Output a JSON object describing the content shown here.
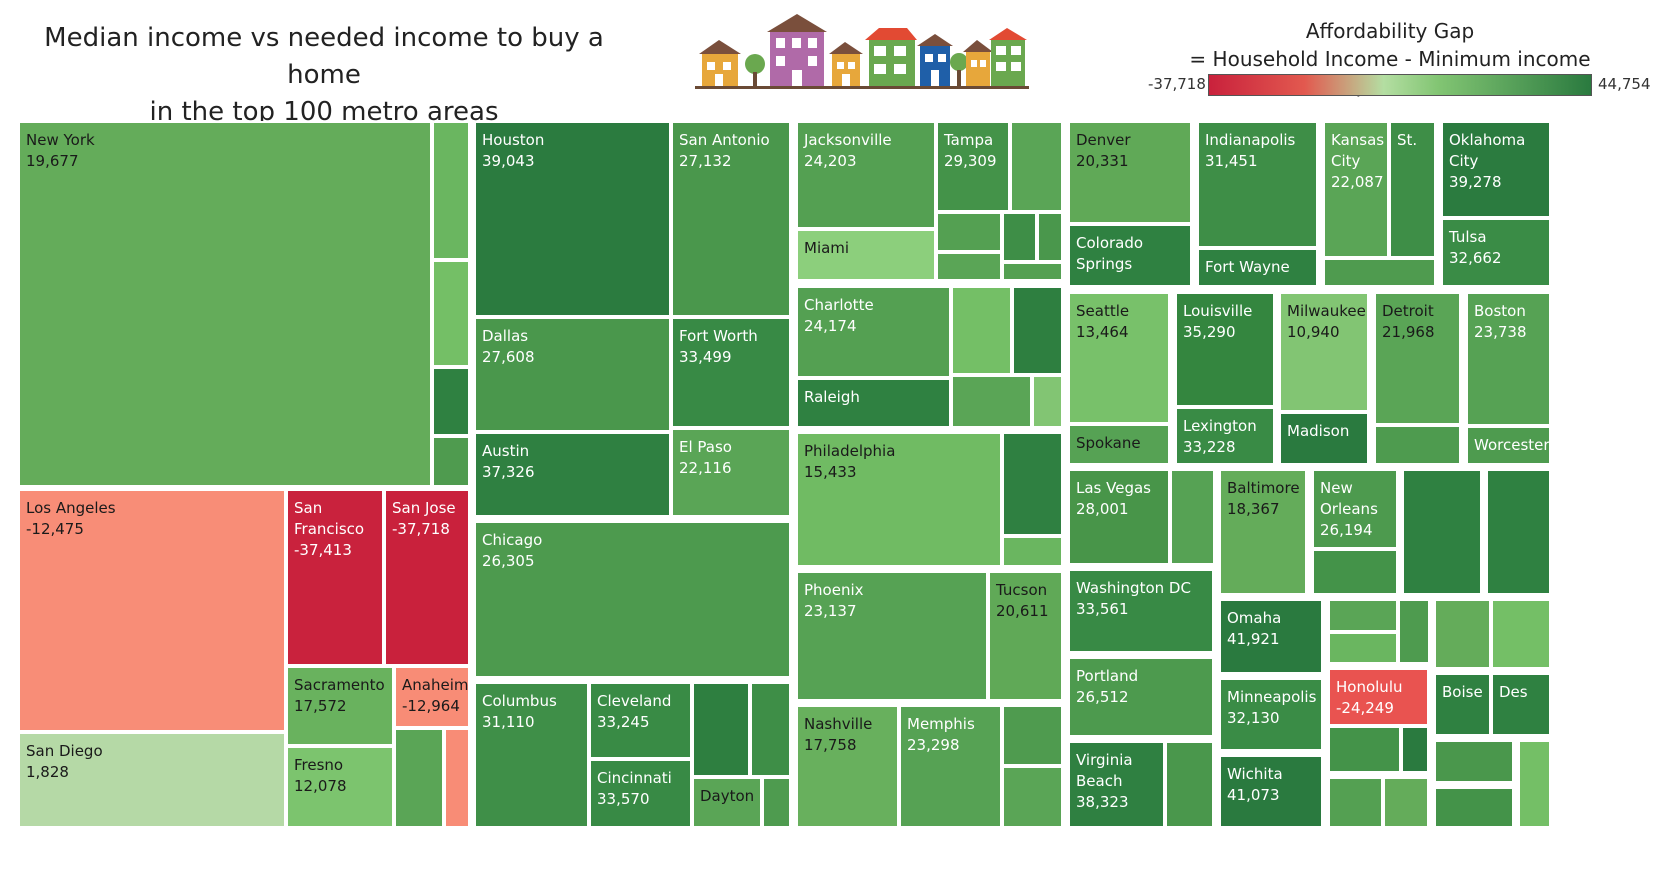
{
  "title_line1": "Median income vs needed income to buy a home",
  "title_line2": "in the top 100 metro areas",
  "legend": {
    "title_line1": "Affordability Gap",
    "title_line2": "= Household Income - Minimum income requirement",
    "min_label": "-37,718",
    "max_label": "44,754",
    "min": -37718,
    "max": 44754,
    "colors": {
      "low": "#c9213c",
      "mid_red": "#e2594f",
      "neutral": "#b4dea2",
      "mid_green": "#82c573",
      "high": "#2a7a3f"
    }
  },
  "chart_data": {
    "type": "treemap",
    "title": "Median income vs needed income to buy a home in the top 100 metro areas",
    "color_measure": "Affordability Gap = Household Income - Minimum income requirement",
    "color_range": [
      -37718,
      44754
    ],
    "labeled_tiles": [
      {
        "city": "New York",
        "value": 19677
      },
      {
        "city": "Los Angeles",
        "value": -12475
      },
      {
        "city": "San Francisco",
        "value": -37413
      },
      {
        "city": "San Jose",
        "value": -37718
      },
      {
        "city": "San Diego",
        "value": 1828
      },
      {
        "city": "Sacramento",
        "value": 17572
      },
      {
        "city": "Anaheim",
        "value": -12964
      },
      {
        "city": "Fresno",
        "value": 12078
      },
      {
        "city": "Houston",
        "value": 39043
      },
      {
        "city": "San Antonio",
        "value": 27132
      },
      {
        "city": "Dallas",
        "value": 27608
      },
      {
        "city": "Fort Worth",
        "value": 33499
      },
      {
        "city": "Austin",
        "value": 37326
      },
      {
        "city": "El Paso",
        "value": 22116
      },
      {
        "city": "Chicago",
        "value": 26305
      },
      {
        "city": "Columbus",
        "value": 31110
      },
      {
        "city": "Cleveland",
        "value": 33245
      },
      {
        "city": "Cincinnati",
        "value": 33570
      },
      {
        "city": "Dayton",
        "value": null
      },
      {
        "city": "Jacksonville",
        "value": 24203
      },
      {
        "city": "Tampa",
        "value": 29309
      },
      {
        "city": "Miami",
        "value": null
      },
      {
        "city": "Charlotte",
        "value": 24174
      },
      {
        "city": "Raleigh",
        "value": null
      },
      {
        "city": "Philadelphia",
        "value": 15433
      },
      {
        "city": "Phoenix",
        "value": 23137
      },
      {
        "city": "Tucson",
        "value": 20611
      },
      {
        "city": "Nashville",
        "value": 17758
      },
      {
        "city": "Memphis",
        "value": 23298
      },
      {
        "city": "Denver",
        "value": 20331
      },
      {
        "city": "Colorado Springs",
        "value": null
      },
      {
        "city": "Indianapolis",
        "value": 31451
      },
      {
        "city": "Fort Wayne",
        "value": null
      },
      {
        "city": "Kansas City",
        "value": 22087
      },
      {
        "city": "St.",
        "value": null
      },
      {
        "city": "Oklahoma City",
        "value": 39278
      },
      {
        "city": "Tulsa",
        "value": 32662
      },
      {
        "city": "Seattle",
        "value": 13464
      },
      {
        "city": "Spokane",
        "value": null
      },
      {
        "city": "Louisville",
        "value": 35290
      },
      {
        "city": "Lexington",
        "value": 33228
      },
      {
        "city": "Milwaukee",
        "value": 10940
      },
      {
        "city": "Madison",
        "value": null
      },
      {
        "city": "Detroit",
        "value": 21968
      },
      {
        "city": "Boston",
        "value": 23738
      },
      {
        "city": "Worcester",
        "value": null
      },
      {
        "city": "Las Vegas",
        "value": 28001
      },
      {
        "city": "Baltimore",
        "value": 18367
      },
      {
        "city": "New Orleans",
        "value": 26194
      },
      {
        "city": "Washington DC",
        "value": 33561
      },
      {
        "city": "Omaha",
        "value": 41921
      },
      {
        "city": "Portland",
        "value": 26512
      },
      {
        "city": "Minneapolis",
        "value": 32130
      },
      {
        "city": "Honolulu",
        "value": -24249
      },
      {
        "city": "Boise",
        "value": null
      },
      {
        "city": "Des",
        "value": null
      },
      {
        "city": "Virginia Beach",
        "value": 38323
      },
      {
        "city": "Wichita",
        "value": 41073
      }
    ]
  },
  "tiles": [
    {
      "city": "New York",
      "value": "19,677",
      "color": "#64ac5a",
      "dark": true
    },
    {
      "city": "",
      "value": "",
      "color": "#6ab660",
      "dark": false
    },
    {
      "city": "",
      "value": "",
      "color": "#74bf66",
      "dark": false
    },
    {
      "city": "",
      "value": "",
      "color": "#2f8141",
      "dark": false
    },
    {
      "city": "",
      "value": "",
      "color": "#4f9b4f",
      "dark": false
    },
    {
      "city": "Los Angeles",
      "value": "-12,475",
      "color": "#f88d77",
      "dark": true
    },
    {
      "city": "San Francisco",
      "value": "-37,413",
      "color": "#c9223d",
      "dark": false
    },
    {
      "city": "San Jose",
      "value": "-37,718",
      "color": "#c9213c",
      "dark": false
    },
    {
      "city": "San Diego",
      "value": "1,828",
      "color": "#b5d9a6",
      "dark": true
    },
    {
      "city": "Sacramento",
      "value": "17,572",
      "color": "#69b25e",
      "dark": true
    },
    {
      "city": "Anaheim",
      "value": "-12,964",
      "color": "#f88c76",
      "dark": true
    },
    {
      "city": "Fresno",
      "value": "12,078",
      "color": "#7cc46e",
      "dark": true
    },
    {
      "city": "",
      "value": "",
      "color": "#5aa556",
      "dark": false
    },
    {
      "city": "",
      "value": "",
      "color": "#f88c76",
      "dark": false
    },
    {
      "city": "Houston",
      "value": "39,043",
      "color": "#2b7b3f",
      "dark": false
    },
    {
      "city": "San Antonio",
      "value": "27,132",
      "color": "#4a974c",
      "dark": false
    },
    {
      "city": "Dallas",
      "value": "27,608",
      "color": "#4a974c",
      "dark": false
    },
    {
      "city": "Fort Worth",
      "value": "33,499",
      "color": "#388a45",
      "dark": false
    },
    {
      "city": "Austin",
      "value": "37,326",
      "color": "#2f8041",
      "dark": false
    },
    {
      "city": "El Paso",
      "value": "22,116",
      "color": "#5aa556",
      "dark": false
    },
    {
      "city": "Chicago",
      "value": "26,305",
      "color": "#4d9a4e",
      "dark": false
    },
    {
      "city": "Columbus",
      "value": "31,110",
      "color": "#3f8f48",
      "dark": false
    },
    {
      "city": "Cleveland",
      "value": "33,245",
      "color": "#398b45",
      "dark": false
    },
    {
      "city": "Cincinnati",
      "value": "33,570",
      "color": "#388a45",
      "dark": false
    },
    {
      "city": "",
      "value": "",
      "color": "#2e7f40",
      "dark": false
    },
    {
      "city": "",
      "value": "",
      "color": "#3e8e47",
      "dark": false
    },
    {
      "city": "Dayton",
      "value": "",
      "color": "#5aa556",
      "dark": true
    },
    {
      "city": "",
      "value": "",
      "color": "#4e9b4f",
      "dark": false
    },
    {
      "city": "Jacksonville",
      "value": "24,203",
      "color": "#54a052",
      "dark": false
    },
    {
      "city": "Tampa",
      "value": "29,309",
      "color": "#449349",
      "dark": false
    },
    {
      "city": "",
      "value": "",
      "color": "#5aa556",
      "dark": false
    },
    {
      "city": "Miami",
      "value": "",
      "color": "#8ccf7c",
      "dark": true
    },
    {
      "city": "",
      "value": "",
      "color": "#54a052",
      "dark": false
    },
    {
      "city": "",
      "value": "",
      "color": "#3e8e47",
      "dark": false
    },
    {
      "city": "",
      "value": "",
      "color": "#4a974c",
      "dark": false
    },
    {
      "city": "",
      "value": "",
      "color": "#5aa556",
      "dark": false
    },
    {
      "city": "",
      "value": "",
      "color": "#54a052",
      "dark": false
    },
    {
      "city": "Charlotte",
      "value": "24,174",
      "color": "#54a052",
      "dark": false
    },
    {
      "city": "",
      "value": "",
      "color": "#74bf66",
      "dark": false
    },
    {
      "city": "",
      "value": "",
      "color": "#2e7f40",
      "dark": false
    },
    {
      "city": "Raleigh",
      "value": "",
      "color": "#2f8141",
      "dark": false
    },
    {
      "city": "",
      "value": "",
      "color": "#5aa556",
      "dark": false
    },
    {
      "city": "",
      "value": "",
      "color": "#82c573",
      "dark": false
    },
    {
      "city": "Philadelphia",
      "value": "15,433",
      "color": "#70bb63",
      "dark": true
    },
    {
      "city": "",
      "value": "",
      "color": "#2f8041",
      "dark": false
    },
    {
      "city": "",
      "value": "",
      "color": "#6ab660",
      "dark": false
    },
    {
      "city": "Phoenix",
      "value": "23,137",
      "color": "#56a254",
      "dark": false
    },
    {
      "city": "Tucson",
      "value": "20,611",
      "color": "#60a957",
      "dark": true
    },
    {
      "city": "Nashville",
      "value": "17,758",
      "color": "#68b05d",
      "dark": true
    },
    {
      "city": "Memphis",
      "value": "23,298",
      "color": "#56a254",
      "dark": false
    },
    {
      "city": "",
      "value": "",
      "color": "#4f9b4f",
      "dark": false
    },
    {
      "city": "",
      "value": "",
      "color": "#5aa556",
      "dark": false
    },
    {
      "city": "Denver",
      "value": "20,331",
      "color": "#60a957",
      "dark": true
    },
    {
      "city": "Colorado Springs",
      "value": "",
      "color": "#2f8141",
      "dark": false
    },
    {
      "city": "Indianapolis",
      "value": "31,451",
      "color": "#3e8e47",
      "dark": false
    },
    {
      "city": "Fort Wayne",
      "value": "",
      "color": "#2f8141",
      "dark": false
    },
    {
      "city": "Kansas City",
      "value": "22,087",
      "color": "#5aa556",
      "dark": false
    },
    {
      "city": "St.",
      "value": "",
      "color": "#3e8e47",
      "dark": false
    },
    {
      "city": "",
      "value": "",
      "color": "#4f9b4f",
      "dark": false
    },
    {
      "city": "Oklahoma City",
      "value": "39,278",
      "color": "#2b7b3f",
      "dark": false
    },
    {
      "city": "Tulsa",
      "value": "32,662",
      "color": "#3a8c46",
      "dark": false
    },
    {
      "city": "Seattle",
      "value": "13,464",
      "color": "#78c16a",
      "dark": true
    },
    {
      "city": "Spokane",
      "value": "",
      "color": "#56a254",
      "dark": true
    },
    {
      "city": "Louisville",
      "value": "35,290",
      "color": "#34863f",
      "dark": false
    },
    {
      "city": "Lexington",
      "value": "33,228",
      "color": "#398b45",
      "dark": false
    },
    {
      "city": "Milwaukee",
      "value": "10,940",
      "color": "#82c573",
      "dark": true
    },
    {
      "city": "Madison",
      "value": "",
      "color": "#2a7a3f",
      "dark": false
    },
    {
      "city": "Detroit",
      "value": "21,968",
      "color": "#5aa556",
      "dark": true
    },
    {
      "city": "",
      "value": "",
      "color": "#4e9b4f",
      "dark": false
    },
    {
      "city": "Boston",
      "value": "23,738",
      "color": "#56a254",
      "dark": false
    },
    {
      "city": "Worcester",
      "value": "",
      "color": "#4e9b4f",
      "dark": false
    },
    {
      "city": "Las Vegas",
      "value": "28,001",
      "color": "#489549",
      "dark": false
    },
    {
      "city": "",
      "value": "",
      "color": "#56a254",
      "dark": false
    },
    {
      "city": "Baltimore",
      "value": "18,367",
      "color": "#64ac5a",
      "dark": true
    },
    {
      "city": "New Orleans",
      "value": "26,194",
      "color": "#4d9a4e",
      "dark": false
    },
    {
      "city": "",
      "value": "",
      "color": "#449349",
      "dark": false
    },
    {
      "city": "",
      "value": "",
      "color": "#2f8141",
      "dark": false
    },
    {
      "city": "",
      "value": "",
      "color": "#2f8141",
      "dark": false
    },
    {
      "city": "Washington DC",
      "value": "33,561",
      "color": "#388a45",
      "dark": false
    },
    {
      "city": "Omaha",
      "value": "41,921",
      "color": "#2a7a3f",
      "dark": false
    },
    {
      "city": "",
      "value": "",
      "color": "#5aa556",
      "dark": false
    },
    {
      "city": "",
      "value": "",
      "color": "#4e9b4f",
      "dark": false
    },
    {
      "city": "",
      "value": "",
      "color": "#6ab660",
      "dark": false
    },
    {
      "city": "",
      "value": "",
      "color": "#64ac5a",
      "dark": false
    },
    {
      "city": "",
      "value": "",
      "color": "#74bf66",
      "dark": false
    },
    {
      "city": "Portland",
      "value": "26,512",
      "color": "#4d9a4e",
      "dark": false
    },
    {
      "city": "Minneapolis",
      "value": "32,130",
      "color": "#3a8c46",
      "dark": false
    },
    {
      "city": "Honolulu",
      "value": "-24,249",
      "color": "#e95350",
      "dark": false
    },
    {
      "city": "Boise",
      "value": "",
      "color": "#2f8141",
      "dark": false
    },
    {
      "city": "Des",
      "value": "",
      "color": "#2f8141",
      "dark": false
    },
    {
      "city": "",
      "value": "",
      "color": "#449349",
      "dark": false
    },
    {
      "city": "",
      "value": "",
      "color": "#2a7a3f",
      "dark": false
    },
    {
      "city": "",
      "value": "",
      "color": "#4a974c",
      "dark": false
    },
    {
      "city": "",
      "value": "",
      "color": "#74bf66",
      "dark": false
    },
    {
      "city": "",
      "value": "",
      "color": "#54a052",
      "dark": false
    },
    {
      "city": "",
      "value": "",
      "color": "#64ac5a",
      "dark": false
    },
    {
      "city": "",
      "value": "",
      "color": "#449349",
      "dark": false
    },
    {
      "city": "Virginia Beach",
      "value": "38,323",
      "color": "#2f8041",
      "dark": false
    },
    {
      "city": "",
      "value": "",
      "color": "#4a974c",
      "dark": false
    },
    {
      "city": "Wichita",
      "value": "41,073",
      "color": "#2a7a3f",
      "dark": false
    }
  ]
}
